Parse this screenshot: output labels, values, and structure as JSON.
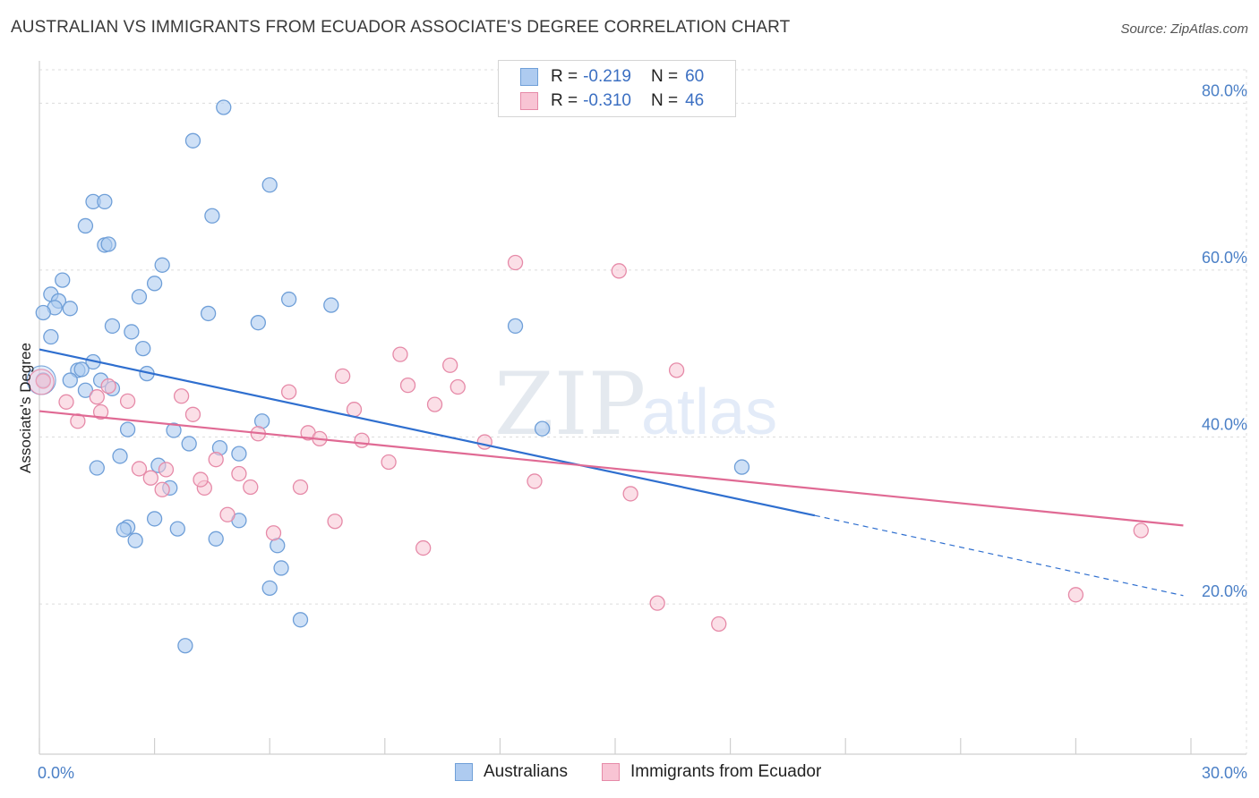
{
  "header": {
    "title": "AUSTRALIAN VS IMMIGRANTS FROM ECUADOR ASSOCIATE'S DEGREE CORRELATION CHART",
    "source": "Source: ZipAtlas.com"
  },
  "legend": {
    "series1": {
      "r_label": "R =",
      "r_value": "-0.219",
      "n_label": "N =",
      "n_value": "60"
    },
    "series2": {
      "r_label": "R =",
      "r_value": "-0.310",
      "n_label": "N =",
      "n_value": "46"
    }
  },
  "colors": {
    "blue_fill": "#aecbf0",
    "blue_stroke": "#6f9fd8",
    "blue_line": "#2f6fcf",
    "pink_fill": "#f8c4d4",
    "pink_stroke": "#e68aa8",
    "pink_line": "#e06a94",
    "tick_text": "#4a7fc6"
  },
  "watermark": {
    "zip": "ZIP",
    "atlas": "atlas"
  },
  "chart_data": {
    "type": "scatter",
    "title": "AUSTRALIAN VS IMMIGRANTS FROM ECUADOR ASSOCIATE'S DEGREE CORRELATION CHART",
    "xlabel": "",
    "ylabel": "Associate's Degree",
    "xlim": [
      0,
      30
    ],
    "ylim": [
      2,
      84
    ],
    "y_ticks": [
      {
        "value": 20,
        "label": "20.0%"
      },
      {
        "value": 40,
        "label": "40.0%"
      },
      {
        "value": 60,
        "label": "60.0%"
      },
      {
        "value": 80,
        "label": "80.0%"
      }
    ],
    "x_tick_labels": {
      "min": "0.0%",
      "max": "30.0%"
    },
    "grid": true,
    "legend_position": "top-center",
    "series": [
      {
        "name": "Australians",
        "color": "blue",
        "points": [
          [
            4.8,
            79.5
          ],
          [
            4.0,
            75.5
          ],
          [
            6.0,
            70.2
          ],
          [
            1.4,
            68.2
          ],
          [
            1.7,
            68.2
          ],
          [
            4.5,
            66.5
          ],
          [
            1.2,
            65.3
          ],
          [
            1.7,
            63.0
          ],
          [
            1.8,
            63.1
          ],
          [
            3.2,
            60.6
          ],
          [
            0.6,
            58.8
          ],
          [
            3.0,
            58.4
          ],
          [
            0.3,
            57.1
          ],
          [
            2.6,
            56.8
          ],
          [
            0.5,
            56.3
          ],
          [
            6.5,
            56.5
          ],
          [
            0.4,
            55.5
          ],
          [
            0.8,
            55.4
          ],
          [
            7.6,
            55.8
          ],
          [
            0.1,
            54.9
          ],
          [
            4.4,
            54.8
          ],
          [
            5.7,
            53.7
          ],
          [
            1.9,
            53.3
          ],
          [
            12.4,
            53.3
          ],
          [
            2.4,
            52.6
          ],
          [
            0.3,
            52.0
          ],
          [
            2.7,
            50.6
          ],
          [
            1.4,
            49.0
          ],
          [
            1.0,
            48.0
          ],
          [
            1.1,
            48.1
          ],
          [
            2.8,
            47.6
          ],
          [
            0.1,
            46.8
          ],
          [
            0.8,
            46.8
          ],
          [
            1.6,
            46.8
          ],
          [
            1.2,
            45.6
          ],
          [
            1.9,
            45.8
          ],
          [
            5.8,
            41.9
          ],
          [
            2.3,
            40.9
          ],
          [
            3.5,
            40.8
          ],
          [
            13.1,
            41.0
          ],
          [
            3.9,
            39.2
          ],
          [
            4.7,
            38.7
          ],
          [
            2.1,
            37.7
          ],
          [
            5.2,
            38.0
          ],
          [
            1.5,
            36.3
          ],
          [
            3.1,
            36.6
          ],
          [
            18.3,
            36.4
          ],
          [
            3.4,
            33.9
          ],
          [
            3.0,
            30.2
          ],
          [
            5.2,
            30.0
          ],
          [
            2.3,
            29.2
          ],
          [
            2.2,
            28.9
          ],
          [
            3.6,
            29.0
          ],
          [
            2.5,
            27.6
          ],
          [
            4.6,
            27.8
          ],
          [
            6.2,
            27.0
          ],
          [
            6.3,
            24.3
          ],
          [
            6.0,
            21.9
          ],
          [
            6.8,
            18.1
          ],
          [
            3.8,
            15.0
          ]
        ]
      },
      {
        "name": "Immigrants from Ecuador",
        "color": "pink",
        "points": [
          [
            12.4,
            60.9
          ],
          [
            15.1,
            59.9
          ],
          [
            0.1,
            46.7
          ],
          [
            9.4,
            49.9
          ],
          [
            10.7,
            48.6
          ],
          [
            16.6,
            48.0
          ],
          [
            7.9,
            47.3
          ],
          [
            9.6,
            46.2
          ],
          [
            10.9,
            46.0
          ],
          [
            1.8,
            46.1
          ],
          [
            6.5,
            45.4
          ],
          [
            3.7,
            44.9
          ],
          [
            1.5,
            44.8
          ],
          [
            0.7,
            44.2
          ],
          [
            2.3,
            44.3
          ],
          [
            10.3,
            43.9
          ],
          [
            8.2,
            43.3
          ],
          [
            1.6,
            43.0
          ],
          [
            4.0,
            42.7
          ],
          [
            1.0,
            41.9
          ],
          [
            5.7,
            40.4
          ],
          [
            7.0,
            40.5
          ],
          [
            7.3,
            39.8
          ],
          [
            8.4,
            39.6
          ],
          [
            11.6,
            39.4
          ],
          [
            4.6,
            37.3
          ],
          [
            9.1,
            37.0
          ],
          [
            2.6,
            36.2
          ],
          [
            3.3,
            36.1
          ],
          [
            5.2,
            35.6
          ],
          [
            2.9,
            35.1
          ],
          [
            12.9,
            34.7
          ],
          [
            4.3,
            33.9
          ],
          [
            5.5,
            34.0
          ],
          [
            6.8,
            34.0
          ],
          [
            3.2,
            33.7
          ],
          [
            15.4,
            33.2
          ],
          [
            4.9,
            30.7
          ],
          [
            7.7,
            29.9
          ],
          [
            6.1,
            28.5
          ],
          [
            10.0,
            26.7
          ],
          [
            28.7,
            28.8
          ],
          [
            27.0,
            21.1
          ],
          [
            16.1,
            20.1
          ],
          [
            17.7,
            17.6
          ],
          [
            4.2,
            34.9
          ]
        ]
      }
    ],
    "trend_lines": [
      {
        "series": "Australians",
        "x": [
          0,
          20.2
        ],
        "y": [
          50.5,
          30.6
        ],
        "dashed_extension_to_x": 29.8,
        "dashed_end_y": 21.0
      },
      {
        "series": "Immigrants from Ecuador",
        "x": [
          0,
          29.8
        ],
        "y": [
          43.1,
          29.4
        ]
      }
    ]
  },
  "bottom_legend": {
    "item1": "Australians",
    "item2": "Immigrants from Ecuador"
  }
}
